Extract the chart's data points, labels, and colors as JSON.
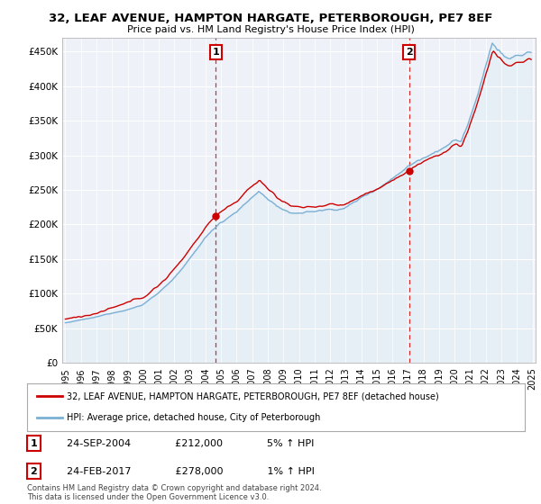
{
  "title": "32, LEAF AVENUE, HAMPTON HARGATE, PETERBOROUGH, PE7 8EF",
  "subtitle": "Price paid vs. HM Land Registry's House Price Index (HPI)",
  "ytick_values": [
    0,
    50000,
    100000,
    150000,
    200000,
    250000,
    300000,
    350000,
    400000,
    450000
  ],
  "ylim": [
    0,
    470000
  ],
  "hpi_color": "#7ab0d4",
  "hpi_fill_color": "#dce8f5",
  "property_color": "#cc0000",
  "annotation1_year": 2004,
  "annotation1_month": 9,
  "annotation1_price": 212000,
  "annotation2_year": 2017,
  "annotation2_month": 2,
  "annotation2_price": 278000,
  "legend_property": "32, LEAF AVENUE, HAMPTON HARGATE, PETERBOROUGH, PE7 8EF (detached house)",
  "legend_hpi": "HPI: Average price, detached house, City of Peterborough",
  "ann1_text": "24-SEP-2004",
  "ann1_price_text": "£212,000",
  "ann1_hpi_text": "5% ↑ HPI",
  "ann2_text": "24-FEB-2017",
  "ann2_price_text": "£278,000",
  "ann2_hpi_text": "1% ↑ HPI",
  "footer": "Contains HM Land Registry data © Crown copyright and database right 2024.\nThis data is licensed under the Open Government Licence v3.0.",
  "background_color": "#ffffff",
  "plot_bg_color": "#eef2f8"
}
